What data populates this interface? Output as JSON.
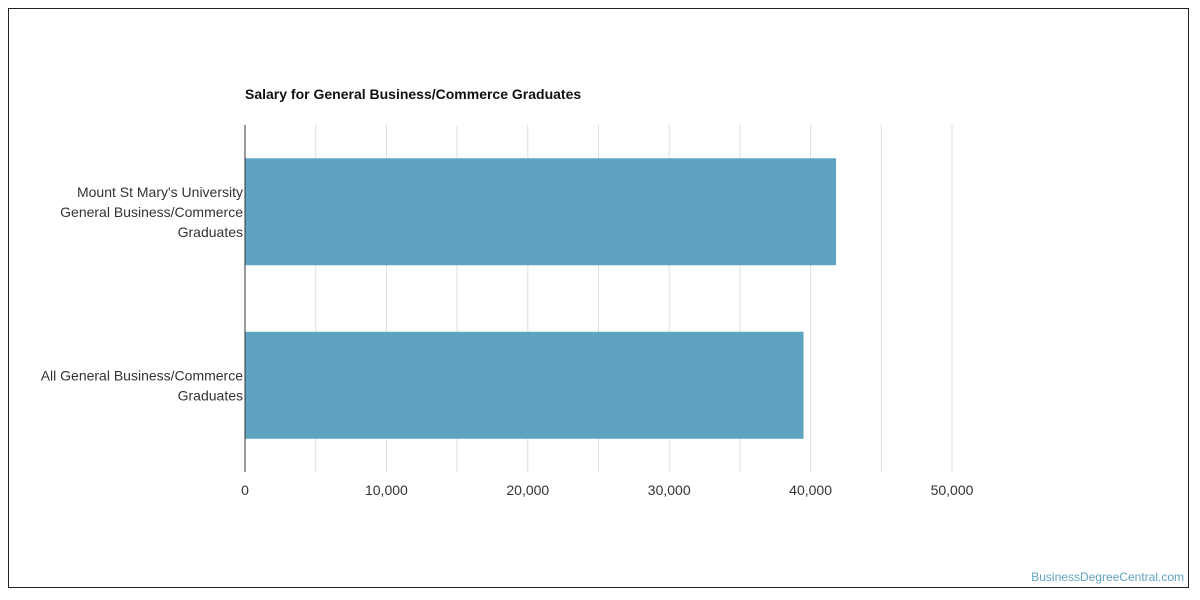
{
  "chart_data": {
    "type": "bar",
    "orientation": "horizontal",
    "title": "Salary for General Business/Commerce Graduates",
    "categories": [
      [
        "Mount St Mary's University",
        "General Business/Commerce",
        "Graduates"
      ],
      [
        "All General Business/Commerce",
        "Graduates"
      ]
    ],
    "values": [
      41800,
      39500
    ],
    "xlim": [
      0,
      50000
    ],
    "x_ticks": [
      0,
      10000,
      20000,
      30000,
      40000,
      50000
    ],
    "x_tick_labels": [
      "0",
      "10,000",
      "20,000",
      "30,000",
      "40,000",
      "50,000"
    ],
    "xlabel": "",
    "ylabel": "",
    "grid": true,
    "bar_color": "#5ea3c0",
    "grid_color": "#dddddd",
    "axis_color": "#333333"
  },
  "watermark": "BusinessDegreeCentral.com"
}
